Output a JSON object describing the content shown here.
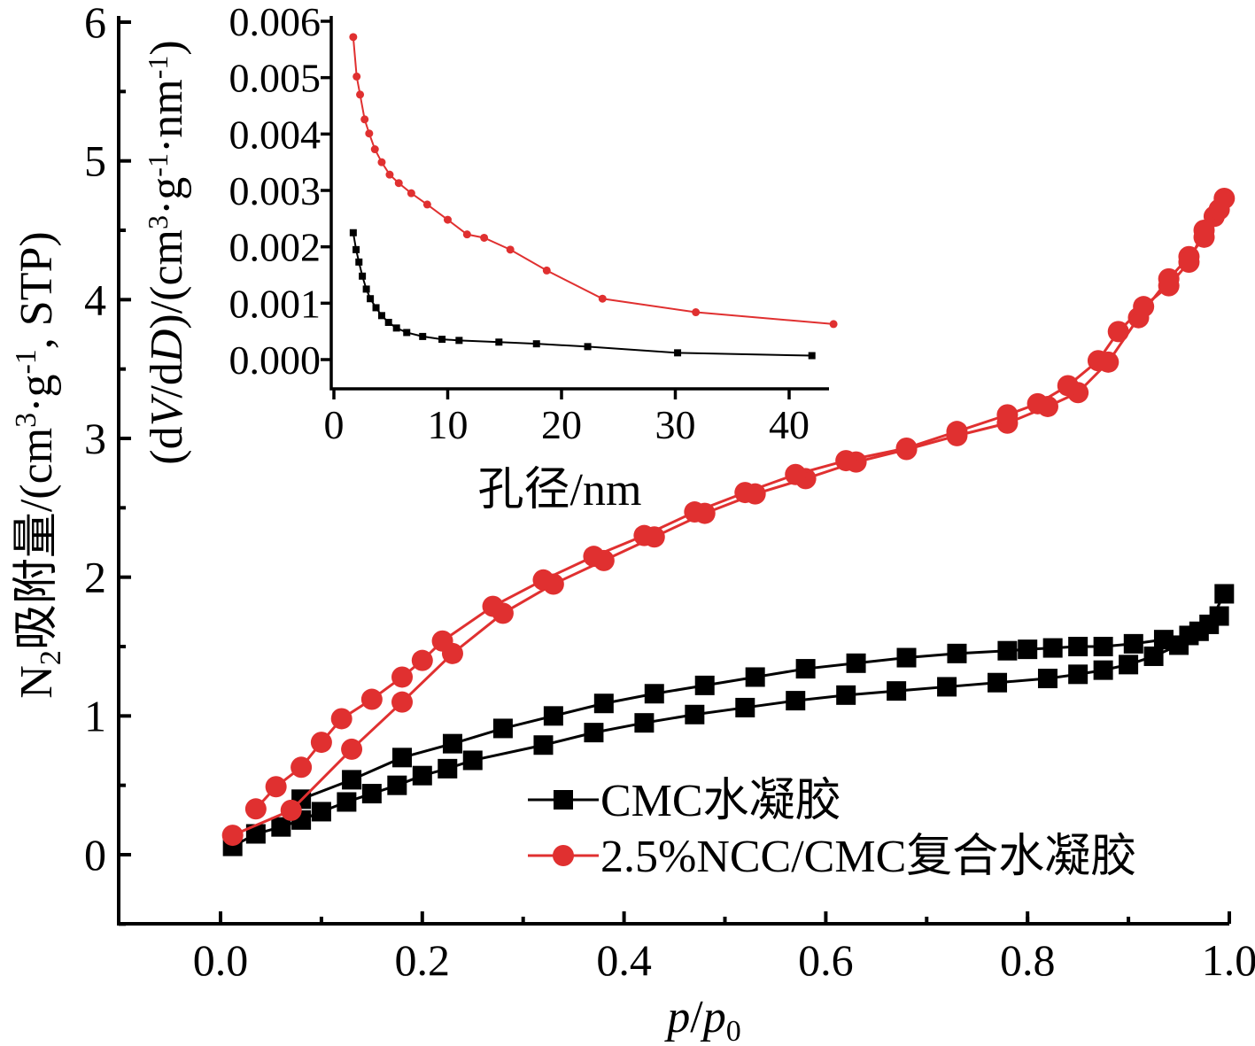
{
  "chart_data": [
    {
      "type": "line",
      "xlabel": "p/p0",
      "ylabel": "N2吸附量/(cm3·g-1, STP)",
      "xlim": [
        -0.1,
        1.0
      ],
      "ylim": [
        -0.5,
        6
      ],
      "xticks": [
        "0.0",
        "0.2",
        "0.4",
        "0.6",
        "0.8",
        "1.0"
      ],
      "yticks": [
        "0",
        "1",
        "2",
        "3",
        "4",
        "5",
        "6"
      ],
      "legend_position": "bottom-right",
      "series": [
        {
          "name": "CMC水凝胶",
          "color": "#000000",
          "marker": "square",
          "adsorption": {
            "x": [
              0.012,
              0.035,
              0.06,
              0.08,
              0.1,
              0.125,
              0.15,
              0.175,
              0.2,
              0.225,
              0.25,
              0.32,
              0.37,
              0.42,
              0.47,
              0.52,
              0.57,
              0.62,
              0.67,
              0.72,
              0.77,
              0.82,
              0.85,
              0.875,
              0.9,
              0.925,
              0.95,
              0.97,
              0.99
            ],
            "y": [
              0.06,
              0.15,
              0.2,
              0.25,
              0.31,
              0.38,
              0.44,
              0.5,
              0.57,
              0.62,
              0.68,
              0.79,
              0.88,
              0.95,
              1.01,
              1.06,
              1.11,
              1.15,
              1.18,
              1.21,
              1.24,
              1.27,
              1.3,
              1.33,
              1.37,
              1.43,
              1.51,
              1.61,
              1.72
            ]
          },
          "desorption": {
            "x": [
              0.995,
              0.98,
              0.96,
              0.935,
              0.905,
              0.875,
              0.85,
              0.825,
              0.8,
              0.78,
              0.73,
              0.68,
              0.63,
              0.58,
              0.53,
              0.48,
              0.43,
              0.38,
              0.33,
              0.28,
              0.23,
              0.18,
              0.13,
              0.08
            ],
            "y": [
              1.88,
              1.66,
              1.58,
              1.55,
              1.52,
              1.5,
              1.5,
              1.49,
              1.48,
              1.47,
              1.45,
              1.42,
              1.38,
              1.34,
              1.28,
              1.22,
              1.16,
              1.09,
              1.0,
              0.91,
              0.8,
              0.7,
              0.54,
              0.4
            ]
          }
        },
        {
          "name": "2.5%NCC/CMC复合水凝胶",
          "color": "#e03030",
          "marker": "circle",
          "adsorption": {
            "x": [
              0.012,
              0.07,
              0.13,
              0.18,
              0.23,
              0.28,
              0.33,
              0.38,
              0.43,
              0.48,
              0.53,
              0.58,
              0.63,
              0.68,
              0.73,
              0.78,
              0.82,
              0.85,
              0.88,
              0.91,
              0.94,
              0.96,
              0.975,
              0.985,
              0.995
            ],
            "y": [
              0.14,
              0.32,
              0.76,
              1.1,
              1.45,
              1.74,
              1.95,
              2.12,
              2.29,
              2.46,
              2.6,
              2.71,
              2.83,
              2.92,
              3.02,
              3.11,
              3.23,
              3.33,
              3.55,
              3.87,
              4.15,
              4.31,
              4.45,
              4.6,
              4.73
            ]
          },
          "desorption": {
            "x": [
              0.99,
              0.975,
              0.96,
              0.94,
              0.915,
              0.89,
              0.87,
              0.84,
              0.81,
              0.78,
              0.73,
              0.68,
              0.62,
              0.57,
              0.52,
              0.47,
              0.42,
              0.37,
              0.32,
              0.27,
              0.22,
              0.2,
              0.18,
              0.15,
              0.12,
              0.1,
              0.08,
              0.055,
              0.035
            ],
            "y": [
              4.65,
              4.5,
              4.27,
              4.1,
              3.95,
              3.77,
              3.56,
              3.38,
              3.25,
              3.17,
              3.05,
              2.93,
              2.84,
              2.74,
              2.61,
              2.47,
              2.3,
              2.15,
              1.98,
              1.79,
              1.54,
              1.4,
              1.28,
              1.12,
              0.98,
              0.81,
              0.63,
              0.49,
              0.33
            ]
          }
        }
      ]
    },
    {
      "type": "line",
      "inset": true,
      "xlabel": "孔径/nm",
      "ylabel": "(dV/dD)/(cm3·g-1·nm-1)",
      "xlim": [
        0,
        45
      ],
      "ylim": [
        -0.0005,
        0.006
      ],
      "xticks": [
        "0",
        "10",
        "20",
        "30",
        "40"
      ],
      "yticks": [
        "0.000",
        "0.001",
        "0.002",
        "0.003",
        "0.004",
        "0.005",
        "0.006"
      ],
      "series": [
        {
          "name": "CMC水凝胶",
          "color": "#000000",
          "marker": "square",
          "x": [
            1.7,
            1.95,
            2.2,
            2.5,
            2.85,
            3.2,
            3.7,
            4.2,
            4.8,
            5.5,
            6.4,
            7.8,
            9.5,
            11.0,
            14.5,
            17.8,
            22.3,
            30.2,
            42.0
          ],
          "y": [
            0.00225,
            0.00195,
            0.00173,
            0.00148,
            0.00125,
            0.00108,
            0.00092,
            0.00078,
            0.00066,
            0.00056,
            0.00048,
            0.00041,
            0.00036,
            0.00034,
            0.00031,
            0.00028,
            0.00023,
            0.00012,
            7e-05
          ]
        },
        {
          "name": "2.5%NCC/CMC复合水凝胶",
          "color": "#e03030",
          "marker": "circle",
          "x": [
            1.7,
            2.0,
            2.3,
            2.7,
            3.1,
            3.6,
            4.2,
            4.9,
            5.7,
            6.8,
            8.2,
            10.0,
            11.7,
            13.2,
            15.5,
            18.7,
            23.6,
            31.8,
            43.9
          ],
          "y": [
            0.00572,
            0.00502,
            0.0047,
            0.00426,
            0.00401,
            0.00373,
            0.0035,
            0.00328,
            0.00313,
            0.00295,
            0.00275,
            0.00248,
            0.00222,
            0.00216,
            0.00195,
            0.00158,
            0.00108,
            0.00084,
            0.00063
          ]
        }
      ]
    }
  ]
}
